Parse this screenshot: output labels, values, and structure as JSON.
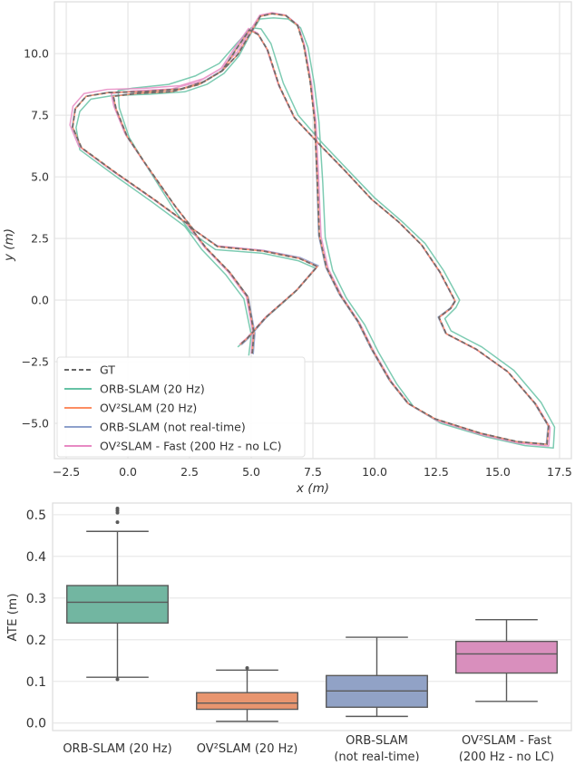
{
  "chart_data": [
    {
      "type": "line",
      "xlabel": "x (m)",
      "ylabel": "y (m)",
      "xlim": [
        -2.98,
        17.98
      ],
      "ylim": [
        -6.43,
        12.1
      ],
      "xticks": [
        "−2.5",
        "0.0",
        "2.5",
        "5.0",
        "7.5",
        "10.0",
        "12.5",
        "15.0",
        "17.5"
      ],
      "xtick_values": [
        -2.5,
        0,
        2.5,
        5,
        7.5,
        10,
        12.5,
        15,
        17.5
      ],
      "yticks": [
        "−5.0",
        "−2.5",
        "0.0",
        "2.5",
        "5.0",
        "7.5",
        "10.0"
      ],
      "ytick_values": [
        -5,
        -2.5,
        0,
        2.5,
        5,
        7.5,
        10
      ],
      "grid": true,
      "legend_position": "bottom-left",
      "series": [
        {
          "name": "GT",
          "color": "#666666",
          "dashed": true,
          "x": [
            5.04,
            5.11,
            4.85,
            4.12,
            3.16,
            2.43,
            1.07,
            -0.51,
            -1.88,
            -2.24,
            -2.13,
            -1.69,
            -0.77,
            0.7,
            2.17,
            3.09,
            3.82,
            4.45,
            4.93,
            5.37,
            5.85,
            6.4,
            6.88,
            7.13,
            7.39,
            7.57,
            7.68,
            7.76,
            8.05,
            8.6,
            9.34,
            9.89,
            10.63,
            11.36,
            12.46,
            14.3,
            15.77,
            16.99,
            17.06,
            16.51,
            15.4,
            14.12,
            12.9,
            12.61,
            13.09,
            13.27,
            12.65,
            11.91,
            10.99,
            9.89,
            8.79,
            7.79,
            6.76,
            6.14,
            5.66,
            5.29,
            4.93,
            4.45,
            3.82,
            2.9,
            1.8,
            0.33,
            -0.59,
            -0.48,
            -0.04,
            0.7,
            1.91,
            2.65,
            3.64,
            5.48,
            6.95,
            7.68,
            6.84,
            5.59,
            4.85,
            4.56
          ],
          "y": [
            -2.17,
            -1.32,
            0.15,
            1.14,
            2.13,
            3.09,
            4.08,
            5.18,
            6.18,
            7.02,
            7.76,
            8.27,
            8.42,
            8.46,
            8.57,
            8.86,
            9.3,
            9.96,
            10.77,
            11.51,
            11.62,
            11.54,
            11.14,
            10.33,
            8.86,
            7.28,
            4.82,
            2.61,
            1.32,
            0.22,
            -0.88,
            -1.99,
            -3.27,
            -4.19,
            -4.82,
            -5.4,
            -5.74,
            -5.85,
            -5.11,
            -4.19,
            -2.9,
            -1.99,
            -1.36,
            -0.7,
            -0.33,
            -0.04,
            1.14,
            2.24,
            3.16,
            4.08,
            5.26,
            6.29,
            7.39,
            8.68,
            10.15,
            10.77,
            10.96,
            10.26,
            9.3,
            8.75,
            8.46,
            8.38,
            8.27,
            7.76,
            6.65,
            5.55,
            3.82,
            2.87,
            2.17,
            1.99,
            1.69,
            1.36,
            0.4,
            -0.7,
            -1.54,
            -1.8
          ]
        },
        {
          "name": "ORB-SLAM (20 Hz)",
          "color": "#66c2a5",
          "x": [
            4.9,
            5.0,
            4.7,
            3.95,
            3.0,
            2.3,
            0.95,
            -0.6,
            -1.95,
            -2.1,
            -1.95,
            -1.5,
            -0.6,
            0.85,
            2.3,
            3.2,
            3.9,
            4.5,
            4.95,
            5.35,
            5.9,
            6.5,
            7.0,
            7.3,
            7.55,
            7.75,
            7.9,
            8.0,
            8.3,
            8.85,
            9.6,
            10.15,
            10.9,
            11.6,
            12.7,
            14.55,
            16.1,
            17.25,
            17.3,
            16.75,
            15.65,
            14.35,
            13.1,
            12.85,
            13.3,
            13.45,
            12.8,
            12.05,
            11.1,
            10.0,
            8.9,
            7.9,
            6.9,
            6.3,
            5.8,
            5.4,
            5.0,
            4.4,
            3.7,
            2.75,
            1.65,
            0.2,
            -0.4,
            -0.35,
            0.05,
            0.75,
            1.85,
            2.55,
            3.55,
            5.45,
            6.9,
            7.6,
            6.75,
            5.5,
            4.75,
            4.45
          ],
          "y": [
            -2.25,
            -1.4,
            0.05,
            1.05,
            2.05,
            3.0,
            4.0,
            5.1,
            6.1,
            7.0,
            7.65,
            8.15,
            8.3,
            8.35,
            8.45,
            8.75,
            9.2,
            9.9,
            10.75,
            11.4,
            11.45,
            11.4,
            11.05,
            10.25,
            8.8,
            7.2,
            4.75,
            2.55,
            1.2,
            0.1,
            -1.0,
            -2.1,
            -3.4,
            -4.35,
            -5.0,
            -5.55,
            -5.9,
            -6.0,
            -5.15,
            -4.15,
            -2.85,
            -1.9,
            -1.25,
            -0.75,
            -0.3,
            0.0,
            1.2,
            2.3,
            3.2,
            4.15,
            5.3,
            6.35,
            7.5,
            8.8,
            10.4,
            11.0,
            11.05,
            10.4,
            9.6,
            9.1,
            8.75,
            8.6,
            8.5,
            7.8,
            6.6,
            5.45,
            3.7,
            2.75,
            2.05,
            1.9,
            1.6,
            1.3,
            0.3,
            -0.8,
            -1.65,
            -1.9
          ]
        },
        {
          "name": "OV²SLAM (20 Hz)",
          "color": "#fc8d62",
          "x": [
            5.04,
            5.11,
            4.85,
            4.12,
            3.16,
            2.43,
            1.07,
            -0.51,
            -1.88,
            -2.24,
            -2.13,
            -1.69,
            -0.77,
            0.7,
            2.17,
            3.09,
            3.82,
            4.45,
            4.93,
            5.37,
            5.85,
            6.4,
            6.88,
            7.13,
            7.39,
            7.57,
            7.68,
            7.76,
            8.05,
            8.6,
            9.34,
            9.89,
            10.63,
            11.36,
            12.46,
            14.3,
            15.77,
            16.99,
            17.06,
            16.51,
            15.4,
            14.12,
            12.9,
            12.61,
            13.09,
            13.27,
            12.65,
            11.91,
            10.99,
            9.89,
            8.79,
            7.79,
            6.76,
            6.14,
            5.66,
            5.29,
            4.93,
            4.45,
            3.82,
            2.9,
            1.8,
            0.33,
            -0.59,
            -0.48,
            -0.04,
            0.7,
            1.91,
            2.65,
            3.64,
            5.48,
            6.95,
            7.68,
            6.84,
            5.59,
            4.85,
            4.56
          ],
          "y": [
            -2.17,
            -1.32,
            0.15,
            1.14,
            2.13,
            3.09,
            4.08,
            5.18,
            6.18,
            7.02,
            7.76,
            8.27,
            8.42,
            8.46,
            8.57,
            8.86,
            9.3,
            9.96,
            10.77,
            11.51,
            11.62,
            11.54,
            11.14,
            10.33,
            8.86,
            7.28,
            4.82,
            2.61,
            1.32,
            0.22,
            -0.88,
            -1.99,
            -3.27,
            -4.19,
            -4.82,
            -5.4,
            -5.74,
            -5.85,
            -5.11,
            -4.19,
            -2.9,
            -1.99,
            -1.36,
            -0.7,
            -0.33,
            -0.04,
            1.14,
            2.24,
            3.16,
            4.08,
            5.26,
            6.29,
            7.39,
            8.68,
            10.15,
            10.77,
            10.96,
            10.26,
            9.3,
            8.75,
            8.46,
            8.38,
            8.27,
            7.76,
            6.65,
            5.55,
            3.82,
            2.87,
            2.17,
            1.99,
            1.69,
            1.36,
            0.4,
            -0.7,
            -1.54,
            -1.8
          ]
        },
        {
          "name": "ORB-SLAM (not real-time)",
          "color": "#8da0cb",
          "x": [
            5.08,
            5.15,
            4.88,
            4.14,
            3.17,
            2.44,
            1.06,
            -0.53,
            -1.9,
            -2.26,
            -2.15,
            -1.7,
            -0.78,
            0.7,
            2.18,
            3.1,
            3.84,
            4.47,
            4.95,
            5.38,
            5.87,
            6.42,
            6.9,
            7.15,
            7.4,
            7.57,
            7.66,
            7.73,
            8.02,
            8.57,
            9.31,
            9.86,
            10.6,
            11.33,
            12.43,
            14.27,
            15.74,
            16.96,
            17.03,
            16.48,
            15.38,
            14.1,
            12.88,
            12.58,
            13.07,
            13.25,
            12.63,
            11.89,
            10.97,
            9.87,
            8.77,
            7.77,
            6.74,
            6.12,
            5.64,
            5.27,
            4.91,
            4.43,
            3.8,
            2.88,
            1.78,
            0.31,
            -0.61,
            -0.5,
            -0.06,
            0.68,
            1.9,
            2.64,
            3.64,
            5.5,
            6.98,
            7.72,
            6.87,
            5.62,
            4.88,
            4.6
          ],
          "y": [
            -2.2,
            -1.35,
            0.13,
            1.12,
            2.12,
            3.08,
            4.08,
            5.18,
            6.18,
            7.02,
            7.76,
            8.27,
            8.43,
            8.47,
            8.58,
            8.87,
            9.31,
            9.97,
            10.78,
            11.52,
            11.63,
            11.55,
            11.15,
            10.34,
            8.87,
            7.29,
            4.83,
            2.62,
            1.33,
            0.23,
            -0.87,
            -1.98,
            -3.26,
            -4.18,
            -4.81,
            -5.39,
            -5.73,
            -5.84,
            -5.1,
            -4.18,
            -2.89,
            -1.98,
            -1.35,
            -0.69,
            -0.32,
            -0.03,
            1.15,
            2.25,
            3.17,
            4.09,
            5.27,
            6.3,
            7.4,
            8.69,
            10.16,
            10.78,
            10.97,
            10.27,
            9.31,
            8.76,
            8.47,
            8.39,
            8.28,
            7.77,
            6.66,
            5.56,
            3.83,
            2.88,
            2.19,
            2.02,
            1.73,
            1.4,
            0.42,
            -0.7,
            -1.55,
            -1.82
          ]
        },
        {
          "name": "OV²SLAM - Fast (200 Hz - no LC)",
          "color": "#e78ac3",
          "x": [
            5.0,
            5.07,
            4.8,
            4.07,
            3.1,
            2.36,
            0.98,
            -0.62,
            -1.99,
            -2.35,
            -2.23,
            -1.78,
            -0.84,
            0.64,
            2.12,
            3.05,
            3.79,
            4.42,
            4.9,
            5.35,
            5.84,
            6.4,
            6.9,
            7.16,
            7.43,
            7.62,
            7.74,
            7.83,
            8.12,
            8.67,
            9.4,
            9.95,
            10.69,
            11.42,
            12.52,
            14.36,
            15.84,
            17.06,
            17.12,
            16.56,
            15.44,
            14.15,
            12.92,
            12.62,
            13.1,
            13.27,
            12.64,
            11.89,
            10.96,
            9.86,
            8.75,
            7.75,
            6.72,
            6.1,
            5.62,
            5.25,
            4.89,
            4.4,
            3.76,
            2.83,
            1.72,
            0.25,
            -0.68,
            -0.57,
            -0.12,
            0.63,
            1.86,
            2.61,
            3.61,
            5.46,
            6.94,
            7.67,
            6.83,
            5.57,
            4.82,
            4.52
          ],
          "y": [
            -2.17,
            -1.32,
            0.15,
            1.14,
            2.15,
            3.12,
            4.12,
            5.23,
            6.24,
            7.1,
            7.86,
            8.38,
            8.55,
            8.59,
            8.7,
            8.98,
            9.41,
            10.05,
            10.84,
            11.56,
            11.66,
            11.56,
            11.15,
            10.33,
            8.85,
            7.26,
            4.79,
            2.57,
            1.28,
            0.17,
            -0.93,
            -2.04,
            -3.32,
            -4.24,
            -4.88,
            -5.46,
            -5.8,
            -5.92,
            -5.17,
            -4.24,
            -2.94,
            -2.02,
            -1.38,
            -0.71,
            -0.34,
            -0.05,
            1.14,
            2.25,
            3.18,
            4.11,
            5.3,
            6.34,
            7.44,
            8.74,
            10.22,
            10.84,
            11.02,
            10.33,
            9.38,
            8.84,
            8.56,
            8.49,
            8.38,
            7.87,
            6.75,
            5.63,
            3.87,
            2.91,
            2.2,
            2.02,
            1.71,
            1.37,
            0.4,
            -0.7,
            -1.54,
            -1.8
          ]
        }
      ]
    },
    {
      "type": "box",
      "ylabel": "ATE (m)",
      "ylim": [
        -0.018,
        0.528
      ],
      "yticks": [
        "0.0",
        "0.1",
        "0.2",
        "0.3",
        "0.4",
        "0.5"
      ],
      "ytick_values": [
        0,
        0.1,
        0.2,
        0.3,
        0.4,
        0.5
      ],
      "grid": true,
      "categories": [
        [
          "ORB-SLAM (20 Hz)"
        ],
        [
          "OV²SLAM (20 Hz)"
        ],
        [
          "ORB-SLAM",
          "(not real-time)"
        ],
        [
          "OV²SLAM - Fast",
          "(200 Hz - no LC)"
        ]
      ],
      "boxes": [
        {
          "color": "#72b6a1",
          "whisker_low": 0.11,
          "q1": 0.24,
          "median": 0.29,
          "q3": 0.33,
          "whisker_high": 0.46,
          "outliers": [
            0.105,
            0.482,
            0.505,
            0.51,
            0.515
          ]
        },
        {
          "color": "#e8956f",
          "whisker_low": 0.004,
          "q1": 0.033,
          "median": 0.048,
          "q3": 0.073,
          "whisker_high": 0.127,
          "outliers": [
            0.132
          ]
        },
        {
          "color": "#91a2c6",
          "whisker_low": 0.016,
          "q1": 0.038,
          "median": 0.077,
          "q3": 0.114,
          "whisker_high": 0.206,
          "outliers": []
        },
        {
          "color": "#d98fbd",
          "whisker_low": 0.052,
          "q1": 0.12,
          "median": 0.166,
          "q3": 0.196,
          "whisker_high": 0.248,
          "outliers": []
        }
      ]
    }
  ]
}
